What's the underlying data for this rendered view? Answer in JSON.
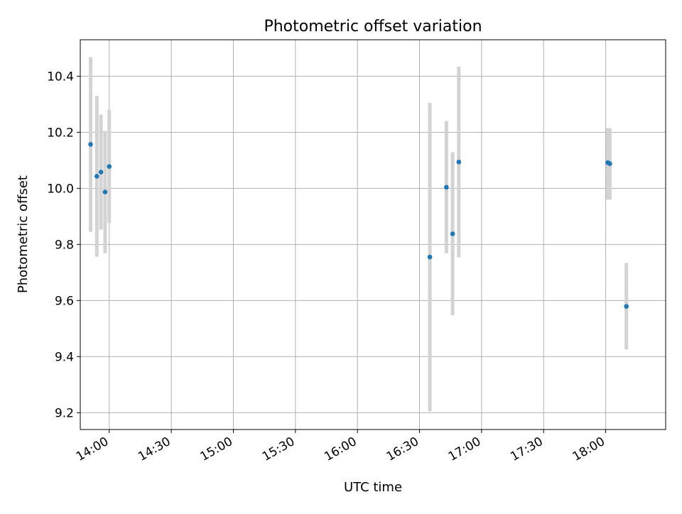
{
  "chart_data": {
    "type": "scatter",
    "title": "Photometric offset variation",
    "xlabel": "UTC time",
    "ylabel": "Photometric offset",
    "x_ticks": [
      "14:00",
      "14:30",
      "15:00",
      "15:30",
      "16:00",
      "16:30",
      "17:00",
      "17:30",
      "18:00"
    ],
    "y_ticks": [
      "9.2",
      "9.4",
      "9.6",
      "9.8",
      "10.0",
      "10.2",
      "10.4"
    ],
    "xlim": [
      "13:46",
      "18:29"
    ],
    "ylim": [
      9.14,
      10.53
    ],
    "grid": true,
    "points": [
      {
        "x": "13:51",
        "y": 10.157,
        "yerr_low": 9.845,
        "yerr_high": 10.468
      },
      {
        "x": "13:54",
        "y": 10.043,
        "yerr_low": 9.756,
        "yerr_high": 10.33
      },
      {
        "x": "13:56",
        "y": 10.058,
        "yerr_low": 9.853,
        "yerr_high": 10.263
      },
      {
        "x": "13:58",
        "y": 9.987,
        "yerr_low": 9.769,
        "yerr_high": 10.205
      },
      {
        "x": "14:00",
        "y": 10.078,
        "yerr_low": 9.876,
        "yerr_high": 10.28
      },
      {
        "x": "16:35",
        "y": 9.755,
        "yerr_low": 9.205,
        "yerr_high": 10.305
      },
      {
        "x": "16:43",
        "y": 10.004,
        "yerr_low": 9.769,
        "yerr_high": 10.24
      },
      {
        "x": "16:46",
        "y": 9.838,
        "yerr_low": 9.548,
        "yerr_high": 10.129
      },
      {
        "x": "16:49",
        "y": 10.094,
        "yerr_low": 9.754,
        "yerr_high": 10.434
      },
      {
        "x": "18:01",
        "y": 10.092,
        "yerr_low": 9.96,
        "yerr_high": 10.215
      },
      {
        "x": "18:02",
        "y": 10.088,
        "yerr_low": 9.96,
        "yerr_high": 10.215
      },
      {
        "x": "18:10",
        "y": 9.579,
        "yerr_low": 9.425,
        "yerr_high": 9.734
      }
    ],
    "colors": {
      "marker": "#1f77b4",
      "errorbar": "#d3d3d3",
      "grid": "#b0b0b0",
      "axes": "#000000"
    }
  }
}
